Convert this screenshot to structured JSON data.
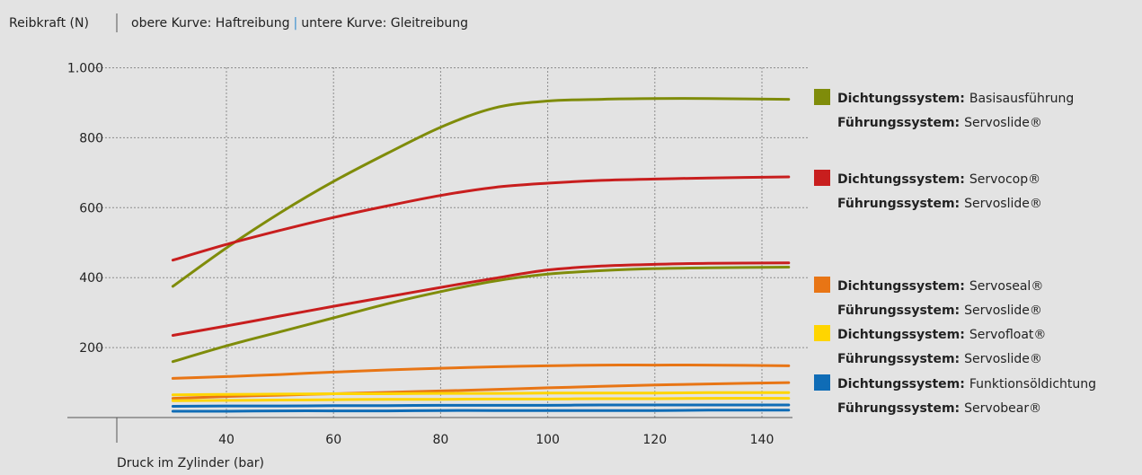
{
  "header": {
    "y_axis_title": "Reibkraft (N)",
    "subtitle_part1": "obere Kurve: Haftreibung",
    "subtitle_separator": "|",
    "subtitle_part2": "untere Kurve: Gleitreibung"
  },
  "colors": {
    "background": "#e3e3e3",
    "grid": "#8c8c8c",
    "axis": "#555555",
    "separator_accent": "#3a8fd0"
  },
  "chart_data": {
    "type": "line",
    "title": "",
    "subtitle": "obere Kurve: Haftreibung | untere Kurve: Gleitreibung",
    "ylabel": "Reibkraft (N)",
    "xlabel": "Druck im Zylinder (bar)",
    "xlim": [
      30,
      145
    ],
    "ylim": [
      0,
      1000
    ],
    "x_ticks": [
      {
        "value": 40,
        "label": "40"
      },
      {
        "value": 60,
        "label": "60"
      },
      {
        "value": 80,
        "label": "80"
      },
      {
        "value": 100,
        "label": "100"
      },
      {
        "value": 120,
        "label": "120"
      },
      {
        "value": 140,
        "label": "140"
      }
    ],
    "y_ticks": [
      {
        "value": 200,
        "label": "200"
      },
      {
        "value": 400,
        "label": "400"
      },
      {
        "value": 600,
        "label": "600"
      },
      {
        "value": 800,
        "label": "800"
      },
      {
        "value": 1000,
        "label": "1.000"
      }
    ],
    "grid": true,
    "legend_position": "right",
    "x": [
      30,
      40,
      50,
      60,
      70,
      80,
      90,
      100,
      110,
      120,
      130,
      145
    ],
    "series": [
      {
        "color": "#7f8c0a",
        "values": [
          375,
          485,
          585,
          675,
          755,
          830,
          885,
          905,
          910,
          912,
          912,
          910
        ]
      },
      {
        "color": "#7f8c0a",
        "values": [
          160,
          205,
          245,
          285,
          325,
          360,
          390,
          410,
          420,
          426,
          428,
          430
        ]
      },
      {
        "color": "#c81e1e",
        "values": [
          450,
          495,
          535,
          572,
          605,
          635,
          658,
          670,
          678,
          682,
          685,
          688
        ]
      },
      {
        "color": "#c81e1e",
        "values": [
          235,
          262,
          290,
          318,
          345,
          372,
          398,
          422,
          433,
          438,
          441,
          442
        ]
      },
      {
        "color": "#e87515",
        "values": [
          112,
          117,
          123,
          130,
          136,
          141,
          145,
          148,
          150,
          150,
          150,
          148
        ]
      },
      {
        "color": "#e87515",
        "values": [
          55,
          60,
          64,
          68,
          72,
          76,
          80,
          85,
          89,
          93,
          96,
          100
        ]
      },
      {
        "color": "#ffd500",
        "values": [
          65,
          66,
          67,
          68,
          68,
          69,
          69,
          70,
          70,
          70,
          71,
          71
        ]
      },
      {
        "color": "#ffd500",
        "values": [
          48,
          49,
          50,
          51,
          52,
          52,
          53,
          53,
          54,
          54,
          55,
          55
        ]
      },
      {
        "color": "#0f6cb6",
        "values": [
          32,
          33,
          33,
          34,
          34,
          35,
          35,
          35,
          36,
          36,
          36,
          36
        ]
      },
      {
        "color": "#0f6cb6",
        "values": [
          18,
          18,
          19,
          19,
          19,
          20,
          20,
          20,
          20,
          20,
          21,
          21
        ]
      }
    ],
    "legend": [
      {
        "color": "#7f8c0a",
        "line1_label": "Dichtungssystem:",
        "line1_value": "Basisausführung",
        "line2_label": "Führungssystem:",
        "line2_value": "Servoslide®"
      },
      {
        "color": "#c81e1e",
        "line1_label": "Dichtungssystem:",
        "line1_value": "Servocop®",
        "line2_label": "Führungssystem:",
        "line2_value": "Servoslide®"
      },
      {
        "color": "#e87515",
        "line1_label": "Dichtungssystem:",
        "line1_value": "Servoseal®",
        "line2_label": "Führungssystem:",
        "line2_value": "Servoslide®"
      },
      {
        "color": "#ffd500",
        "line1_label": "Dichtungssystem:",
        "line1_value": "Servofloat®",
        "line2_label": "Führungssystem:",
        "line2_value": "Servoslide®"
      },
      {
        "color": "#0f6cb6",
        "line1_label": "Dichtungssystem:",
        "line1_value": "Funktionsöldichtung",
        "line2_label": "Führungssystem:",
        "line2_value": "Servobear®"
      }
    ]
  }
}
